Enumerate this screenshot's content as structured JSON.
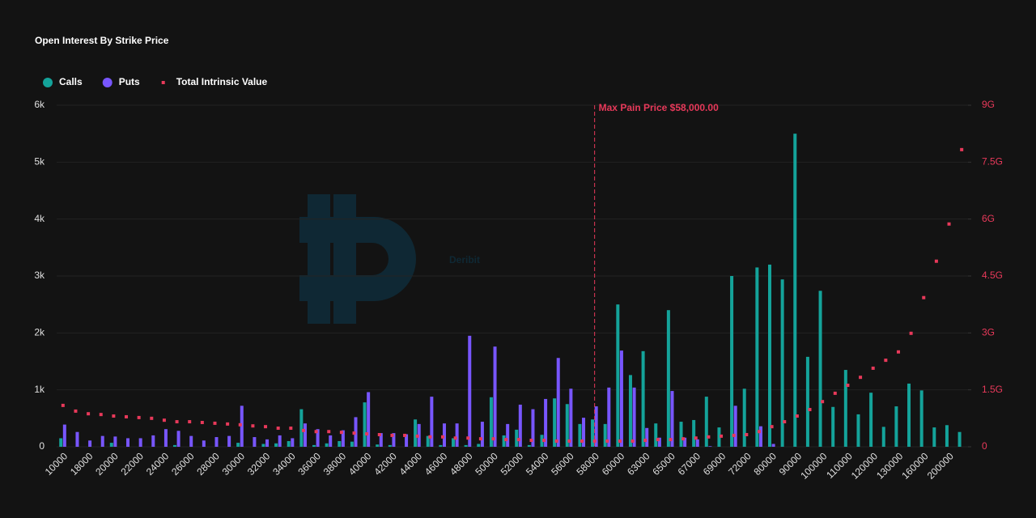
{
  "chart_data": {
    "type": "bar",
    "title": "Open Interest By Strike Price",
    "watermark": "Deribit",
    "categories": [
      "10000",
      null,
      "18000",
      null,
      "20000",
      null,
      "22000",
      null,
      "24000",
      null,
      "26000",
      null,
      "28000",
      null,
      "30000",
      null,
      "32000",
      null,
      "34000",
      null,
      "36000",
      null,
      "38000",
      null,
      "40000",
      null,
      "42000",
      null,
      "44000",
      null,
      "46000",
      null,
      "48000",
      null,
      "50000",
      null,
      "52000",
      null,
      "54000",
      null,
      "56000",
      null,
      "58000",
      null,
      "60000",
      null,
      "63000",
      null,
      "65000",
      null,
      "67000",
      null,
      "69000",
      null,
      "72000",
      null,
      "80000",
      null,
      "90000",
      null,
      "100000",
      null,
      "110000",
      null,
      "120000",
      null,
      "130000",
      null,
      "160000",
      null,
      "200000",
      null
    ],
    "series": [
      {
        "name": "Calls",
        "color": "#14a39a",
        "values": [
          150,
          0,
          0,
          0,
          70,
          0,
          0,
          0,
          0,
          30,
          0,
          0,
          0,
          0,
          70,
          0,
          50,
          60,
          100,
          660,
          30,
          60,
          100,
          90,
          780,
          40,
          30,
          0,
          480,
          190,
          30,
          150,
          30,
          50,
          870,
          200,
          300,
          30,
          210,
          850,
          750,
          400,
          480,
          400,
          2500,
          1260,
          1680,
          410,
          2400,
          440,
          470,
          880,
          340,
          3000,
          1020,
          3150,
          3200,
          2940,
          5500,
          1580,
          2740,
          700,
          1350,
          570,
          950,
          350,
          710,
          1110,
          990,
          340,
          380,
          260
        ]
      },
      {
        "name": "Puts",
        "color": "#7856ff",
        "values": [
          390,
          260,
          110,
          190,
          180,
          150,
          150,
          200,
          310,
          280,
          190,
          110,
          170,
          190,
          720,
          170,
          130,
          200,
          150,
          410,
          310,
          200,
          290,
          520,
          960,
          240,
          240,
          220,
          400,
          880,
          410,
          410,
          1950,
          440,
          1760,
          400,
          740,
          660,
          840,
          1560,
          1020,
          510,
          710,
          1040,
          1690,
          1040,
          330,
          160,
          980,
          160,
          130,
          10,
          0,
          720,
          0,
          360,
          50,
          0,
          0,
          0,
          0,
          0,
          0,
          0,
          0,
          0,
          0,
          0,
          0,
          0,
          0,
          0
        ]
      },
      {
        "name": "Total Intrinsic Value",
        "color": "#e8395a",
        "axis": "y2",
        "values": [
          1090000000,
          940000000,
          870000000,
          850000000,
          810000000,
          790000000,
          770000000,
          750000000,
          700000000,
          660000000,
          660000000,
          640000000,
          620000000,
          600000000,
          580000000,
          550000000,
          530000000,
          490000000,
          490000000,
          430000000,
          400000000,
          400000000,
          380000000,
          360000000,
          340000000,
          320000000,
          300000000,
          300000000,
          280000000,
          260000000,
          260000000,
          230000000,
          230000000,
          210000000,
          210000000,
          190000000,
          190000000,
          170000000,
          170000000,
          150000000,
          150000000,
          150000000,
          150000000,
          150000000,
          150000000,
          150000000,
          170000000,
          190000000,
          190000000,
          210000000,
          230000000,
          260000000,
          280000000,
          300000000,
          320000000,
          400000000,
          530000000,
          660000000,
          810000000,
          980000000,
          1190000000,
          1410000000,
          1620000000,
          1830000000,
          2070000000,
          2280000000,
          2500000000,
          2990000000,
          3930000000,
          4890000000,
          5870000000,
          7830000000
        ]
      }
    ],
    "ylim": [
      0,
      6000
    ],
    "yticks": [
      0,
      {
        "value": 1000,
        "label": "1k"
      },
      {
        "value": 2000,
        "label": "2k"
      },
      {
        "value": 3000,
        "label": "3k"
      },
      {
        "value": 4000,
        "label": "4k"
      },
      {
        "value": 5000,
        "label": "5k"
      },
      {
        "value": 6000,
        "label": "6k"
      }
    ],
    "y2lim": [
      0,
      9000000000
    ],
    "y2ticks": [
      0,
      {
        "value": 1500000000,
        "label": "1.5G"
      },
      {
        "value": 3000000000,
        "label": "3G"
      },
      {
        "value": 4500000000,
        "label": "4.5G"
      },
      {
        "value": 6000000000,
        "label": "6G"
      },
      {
        "value": 7500000000,
        "label": "7.5G"
      },
      {
        "value": 9000000000,
        "label": "9G"
      }
    ],
    "grid": true,
    "legend": "top-left",
    "annotation": {
      "text": "Max Pain Price $58,000.00",
      "x": 58000,
      "color": "#e8395a"
    }
  }
}
